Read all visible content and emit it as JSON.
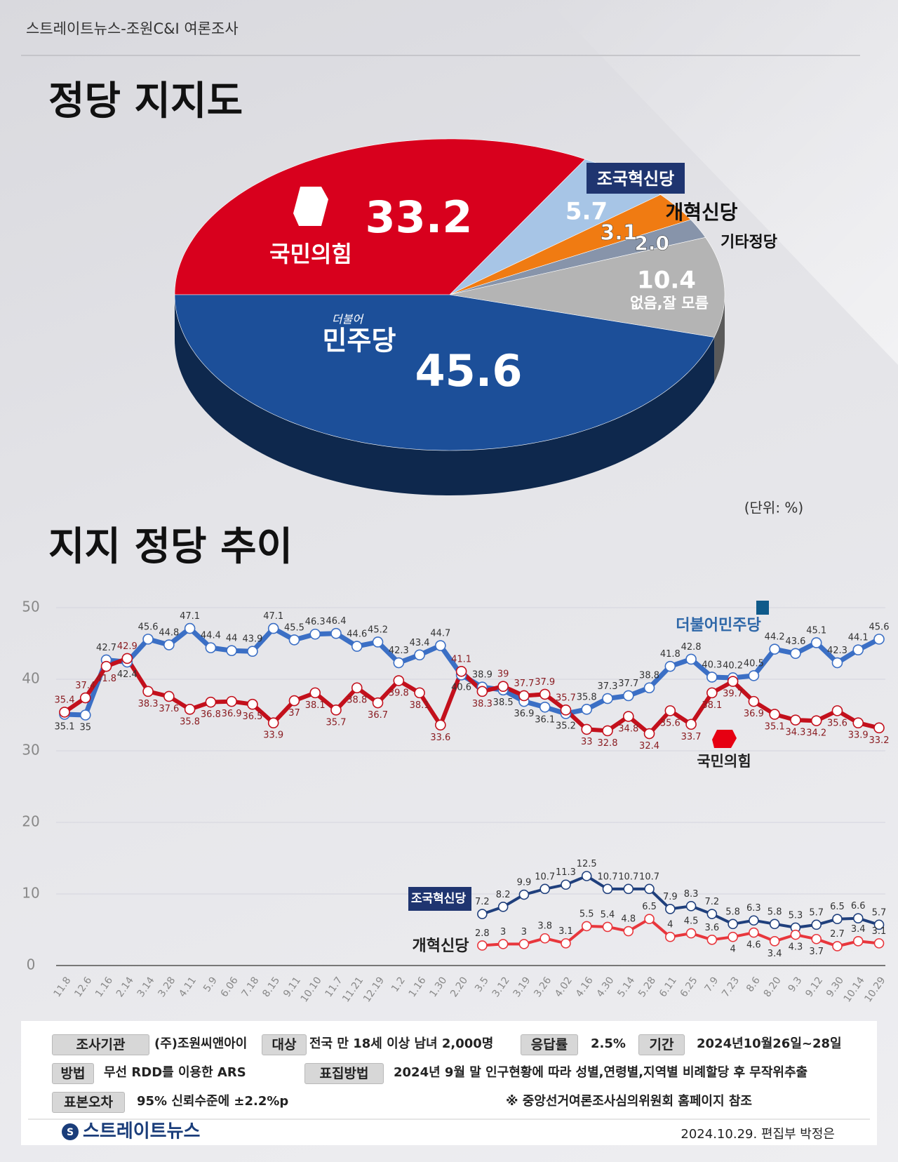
{
  "header": {
    "source": "스트레이트뉴스-조원C&I 여론조사",
    "title": "정당 지지도",
    "unit": "(단위: %)",
    "trend_title": "지지 정당 추이"
  },
  "chart_data": [
    {
      "type": "pie",
      "categories": [
        "국민의힘",
        "조국혁신당",
        "개혁신당",
        "기타정당",
        "없음,잘 모름",
        "민주당"
      ],
      "values": [
        33.2,
        5.7,
        3.1,
        2.0,
        10.4,
        45.6
      ],
      "value_labels": [
        "33.2",
        "5.7",
        "3.1",
        "2.0",
        "10.4",
        "45.6"
      ],
      "colors": [
        "#d8001d",
        "#a7c5e6",
        "#f07b12",
        "#8794aa",
        "#b4b4b4",
        "#1c4f99"
      ],
      "prefix": "더불어"
    },
    {
      "type": "line",
      "categories": [
        "11.8",
        "12.6",
        "1.16",
        "2.14",
        "3.14",
        "3.28",
        "4.11",
        "5.9",
        "6.06",
        "7.18",
        "8.15",
        "9.11",
        "10.10",
        "11.7",
        "11.21",
        "12.19",
        "1.2",
        "1.16",
        "1.30",
        "2.20",
        "3.5",
        "3.12",
        "3.19",
        "3.26",
        "4.02",
        "4.16",
        "4.30",
        "5.14",
        "5.28",
        "6.11",
        "6.25",
        "7.9",
        "7.23",
        "8.6",
        "8.20",
        "9.3",
        "9.12",
        "9.30",
        "10.14",
        "10.29"
      ],
      "ylim": [
        0,
        50
      ],
      "yticks": [
        0,
        10,
        20,
        30,
        40,
        50
      ],
      "grid": true,
      "series": [
        {
          "name": "더불어민주당",
          "color": "#3b6fc5",
          "values": [
            35.1,
            35,
            42.7,
            42.4,
            45.6,
            44.8,
            47.1,
            44.4,
            44,
            43.9,
            47.1,
            45.5,
            46.3,
            46.4,
            44.6,
            45.2,
            42.3,
            43.4,
            44.7,
            40.6,
            38.9,
            38.5,
            36.9,
            36.1,
            35.2,
            35.8,
            37.3,
            37.7,
            38.8,
            41.8,
            42.8,
            40.3,
            40.2,
            40.5,
            44.2,
            43.6,
            45.1,
            42.3,
            44.1,
            45.6
          ]
        },
        {
          "name": "국민의힘",
          "color": "#c3101c",
          "values": [
            35.4,
            37.4,
            41.8,
            42.9,
            38.3,
            37.6,
            35.8,
            36.8,
            36.9,
            36.5,
            33.9,
            37,
            38.1,
            35.7,
            38.8,
            36.7,
            39.8,
            38.1,
            33.6,
            41.1,
            38.3,
            39,
            37.7,
            37.9,
            35.7,
            33,
            32.8,
            34.8,
            32.4,
            35.6,
            33.7,
            38.1,
            39.7,
            36.9,
            35.1,
            34.3,
            34.2,
            35.6,
            33.9,
            33.2
          ]
        },
        {
          "name": "조국혁신당",
          "color": "#1f3f7c",
          "values": [
            null,
            null,
            null,
            null,
            null,
            null,
            null,
            null,
            null,
            null,
            null,
            null,
            null,
            null,
            null,
            null,
            null,
            null,
            null,
            null,
            7.2,
            8.2,
            9.9,
            10.7,
            11.3,
            12.5,
            10.7,
            10.7,
            10.7,
            7.9,
            8.3,
            7.2,
            5.8,
            6.3,
            5.8,
            5.3,
            5.7,
            6.5,
            6.6,
            5.7
          ]
        },
        {
          "name": "개혁신당",
          "color": "#e8363c",
          "values": [
            null,
            null,
            null,
            null,
            null,
            null,
            null,
            null,
            null,
            null,
            null,
            null,
            null,
            null,
            null,
            null,
            null,
            null,
            null,
            null,
            2.8,
            3,
            3,
            3.8,
            3.1,
            5.5,
            5.4,
            4.8,
            6.5,
            4,
            4.5,
            3.6,
            4,
            4.6,
            3.4,
            4.3,
            3.7,
            2.7,
            3.4,
            3.1
          ]
        }
      ]
    }
  ],
  "footer": {
    "rows": [
      [
        {
          "label": "조사기관",
          "text": "(주)조원씨앤아이"
        },
        {
          "label": "대상",
          "text": "전국 만 18세 이상 남녀 2,000명"
        },
        {
          "label": "응답률",
          "text": "2.5%"
        },
        {
          "label": "기간",
          "text": "2024년10월26일~28일"
        }
      ],
      [
        {
          "label": "방법",
          "text": "무선 RDD를 이용한 ARS"
        },
        {
          "label": "표집방법",
          "text": "2024년 9월 말 인구현황에 따라 성별,연령별,지역별 비례할당 후 무작위추출"
        }
      ],
      [
        {
          "label": "표본오차",
          "text": "95% 신뢰수준에 ±2.2%p"
        }
      ]
    ],
    "note": "※ 중앙선거여론조사심의위원회 홈페이지 참조",
    "brand": "스트레이트뉴스",
    "byline": "2024.10.29. 편집부 박정은"
  }
}
